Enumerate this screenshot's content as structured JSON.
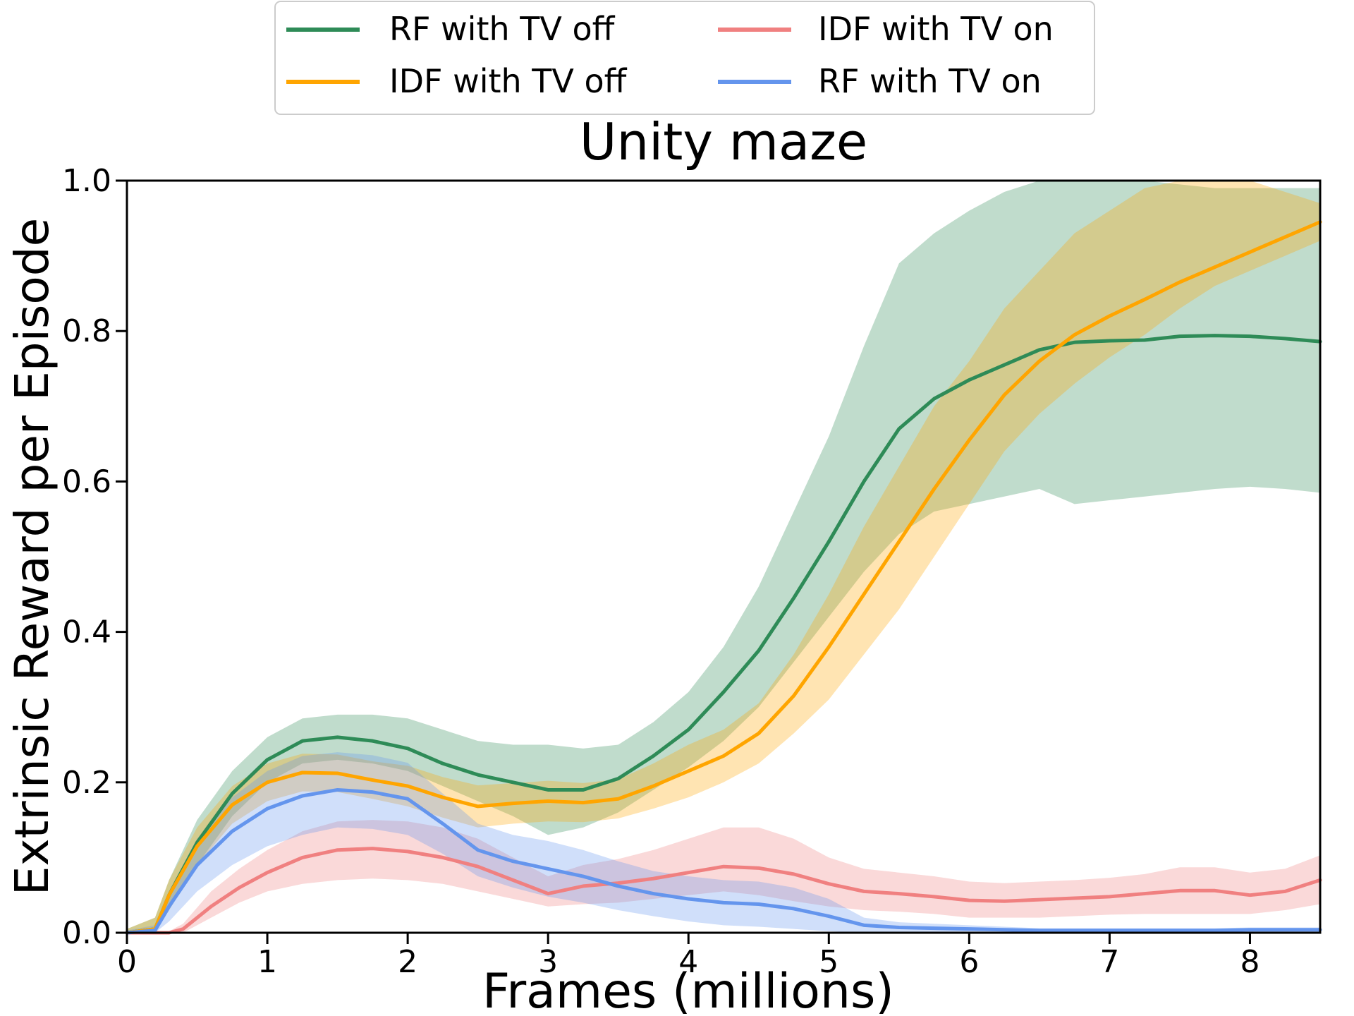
{
  "chart_data": {
    "type": "line",
    "title": "Unity maze",
    "xlabel": "Frames (millions)",
    "ylabel": "Extrinsic Reward per Episode",
    "xlim": [
      0,
      8.5
    ],
    "ylim": [
      0,
      1.0
    ],
    "xticks": [
      "0",
      "1",
      "2",
      "3",
      "4",
      "5",
      "6",
      "7",
      "8"
    ],
    "yticks": [
      "0.0",
      "0.2",
      "0.4",
      "0.6",
      "0.8",
      "1.0"
    ],
    "legend_position": "top-center-outside",
    "grid": false,
    "series": [
      {
        "name": "RF with TV off",
        "color": "#2e8b57",
        "x": [
          0,
          0.2,
          0.3,
          0.5,
          0.75,
          1.0,
          1.25,
          1.5,
          1.75,
          2.0,
          2.25,
          2.5,
          2.75,
          3.0,
          3.25,
          3.5,
          3.75,
          4.0,
          4.25,
          4.5,
          4.75,
          5.0,
          5.25,
          5.5,
          5.75,
          6.0,
          6.25,
          6.5,
          6.75,
          7.0,
          7.25,
          7.5,
          7.75,
          8.0,
          8.25,
          8.5
        ],
        "y": [
          0,
          0.005,
          0.05,
          0.12,
          0.185,
          0.23,
          0.255,
          0.26,
          0.255,
          0.245,
          0.225,
          0.21,
          0.2,
          0.19,
          0.19,
          0.205,
          0.235,
          0.27,
          0.32,
          0.375,
          0.445,
          0.52,
          0.6,
          0.67,
          0.71,
          0.735,
          0.755,
          0.775,
          0.785,
          0.787,
          0.788,
          0.793,
          0.794,
          0.793,
          0.79,
          0.786
        ],
        "lower": [
          0,
          0,
          0.03,
          0.09,
          0.155,
          0.2,
          0.225,
          0.23,
          0.225,
          0.215,
          0.195,
          0.175,
          0.155,
          0.13,
          0.14,
          0.16,
          0.19,
          0.22,
          0.255,
          0.3,
          0.36,
          0.42,
          0.48,
          0.53,
          0.56,
          0.57,
          0.58,
          0.59,
          0.57,
          0.575,
          0.58,
          0.585,
          0.59,
          0.593,
          0.59,
          0.585
        ],
        "upper": [
          0.005,
          0.02,
          0.07,
          0.15,
          0.215,
          0.26,
          0.285,
          0.29,
          0.29,
          0.285,
          0.27,
          0.255,
          0.25,
          0.25,
          0.245,
          0.25,
          0.28,
          0.32,
          0.38,
          0.46,
          0.56,
          0.66,
          0.78,
          0.89,
          0.93,
          0.96,
          0.985,
          1.0,
          1.0,
          1.0,
          1.0,
          0.995,
          0.99,
          0.99,
          0.99,
          0.99
        ]
      },
      {
        "name": "IDF with TV off",
        "color": "#ffa500",
        "x": [
          0,
          0.2,
          0.3,
          0.5,
          0.75,
          1.0,
          1.25,
          1.5,
          1.75,
          2.0,
          2.25,
          2.5,
          2.75,
          3.0,
          3.25,
          3.5,
          3.75,
          4.0,
          4.25,
          4.5,
          4.75,
          5.0,
          5.25,
          5.5,
          5.75,
          6.0,
          6.25,
          6.5,
          6.75,
          7.0,
          7.25,
          7.5,
          7.75,
          8.0,
          8.25,
          8.5
        ],
        "y": [
          0,
          0.005,
          0.05,
          0.115,
          0.17,
          0.2,
          0.213,
          0.212,
          0.203,
          0.195,
          0.18,
          0.168,
          0.172,
          0.175,
          0.173,
          0.178,
          0.195,
          0.215,
          0.235,
          0.265,
          0.315,
          0.38,
          0.45,
          0.52,
          0.59,
          0.655,
          0.715,
          0.76,
          0.795,
          0.82,
          0.842,
          0.865,
          0.885,
          0.905,
          0.925,
          0.945
        ],
        "lower": [
          0,
          0,
          0.03,
          0.09,
          0.145,
          0.175,
          0.188,
          0.187,
          0.178,
          0.168,
          0.153,
          0.14,
          0.145,
          0.148,
          0.147,
          0.152,
          0.165,
          0.18,
          0.2,
          0.225,
          0.265,
          0.31,
          0.37,
          0.43,
          0.5,
          0.57,
          0.64,
          0.69,
          0.73,
          0.765,
          0.795,
          0.83,
          0.86,
          0.88,
          0.9,
          0.92
        ],
        "upper": [
          0.005,
          0.02,
          0.07,
          0.14,
          0.195,
          0.225,
          0.238,
          0.237,
          0.228,
          0.222,
          0.207,
          0.196,
          0.199,
          0.202,
          0.199,
          0.204,
          0.225,
          0.25,
          0.27,
          0.305,
          0.37,
          0.45,
          0.54,
          0.62,
          0.7,
          0.76,
          0.83,
          0.88,
          0.93,
          0.96,
          0.99,
          1.0,
          1.0,
          1.0,
          0.985,
          0.97
        ]
      },
      {
        "name": "IDF with TV on",
        "color": "#f08080",
        "x": [
          0,
          0.3,
          0.4,
          0.6,
          0.8,
          1.0,
          1.25,
          1.5,
          1.75,
          2.0,
          2.25,
          2.5,
          2.75,
          3.0,
          3.25,
          3.5,
          3.75,
          4.0,
          4.25,
          4.5,
          4.75,
          5.0,
          5.25,
          5.5,
          5.75,
          6.0,
          6.25,
          6.5,
          6.75,
          7.0,
          7.25,
          7.5,
          7.75,
          8.0,
          8.25,
          8.5
        ],
        "y": [
          0,
          0,
          0.005,
          0.035,
          0.06,
          0.08,
          0.1,
          0.11,
          0.112,
          0.108,
          0.1,
          0.088,
          0.07,
          0.052,
          0.062,
          0.066,
          0.072,
          0.08,
          0.088,
          0.086,
          0.078,
          0.065,
          0.055,
          0.052,
          0.048,
          0.043,
          0.042,
          0.044,
          0.046,
          0.048,
          0.052,
          0.056,
          0.056,
          0.05,
          0.055,
          0.07
        ],
        "lower": [
          0,
          0,
          0,
          0.02,
          0.04,
          0.055,
          0.065,
          0.07,
          0.072,
          0.07,
          0.065,
          0.055,
          0.045,
          0.035,
          0.038,
          0.04,
          0.045,
          0.05,
          0.055,
          0.05,
          0.042,
          0.035,
          0.03,
          0.028,
          0.025,
          0.02,
          0.02,
          0.02,
          0.022,
          0.024,
          0.025,
          0.025,
          0.025,
          0.025,
          0.03,
          0.038
        ],
        "upper": [
          0.002,
          0.002,
          0.012,
          0.055,
          0.085,
          0.11,
          0.135,
          0.148,
          0.15,
          0.148,
          0.14,
          0.125,
          0.1,
          0.075,
          0.09,
          0.098,
          0.11,
          0.125,
          0.14,
          0.14,
          0.125,
          0.1,
          0.085,
          0.08,
          0.075,
          0.068,
          0.066,
          0.068,
          0.07,
          0.073,
          0.078,
          0.087,
          0.087,
          0.08,
          0.085,
          0.103
        ]
      },
      {
        "name": "RF with TV on",
        "color": "#6495ed",
        "x": [
          0,
          0.2,
          0.3,
          0.5,
          0.75,
          1.0,
          1.25,
          1.5,
          1.75,
          2.0,
          2.25,
          2.5,
          2.75,
          3.0,
          3.25,
          3.5,
          3.75,
          4.0,
          4.25,
          4.5,
          4.75,
          5.0,
          5.25,
          5.5,
          5.75,
          6.0,
          6.25,
          6.5,
          6.75,
          7.0,
          7.25,
          7.5,
          7.75,
          8.0,
          8.25,
          8.5
        ],
        "y": [
          0,
          0.003,
          0.035,
          0.09,
          0.135,
          0.165,
          0.182,
          0.19,
          0.187,
          0.178,
          0.145,
          0.11,
          0.095,
          0.085,
          0.075,
          0.062,
          0.052,
          0.045,
          0.04,
          0.038,
          0.032,
          0.022,
          0.01,
          0.007,
          0.006,
          0.005,
          0.004,
          0.003,
          0.003,
          0.003,
          0.003,
          0.003,
          0.003,
          0.004,
          0.004,
          0.004
        ],
        "lower": [
          0,
          0,
          0.015,
          0.055,
          0.09,
          0.115,
          0.13,
          0.14,
          0.138,
          0.13,
          0.105,
          0.075,
          0.06,
          0.048,
          0.04,
          0.03,
          0.022,
          0.015,
          0.01,
          0.008,
          0.005,
          0.002,
          0,
          0,
          0,
          0,
          0,
          0,
          0,
          0,
          0,
          0,
          0,
          0,
          0,
          0
        ],
        "upper": [
          0.003,
          0.01,
          0.055,
          0.125,
          0.18,
          0.215,
          0.235,
          0.24,
          0.236,
          0.226,
          0.185,
          0.145,
          0.13,
          0.122,
          0.11,
          0.095,
          0.082,
          0.075,
          0.07,
          0.068,
          0.06,
          0.045,
          0.02,
          0.014,
          0.012,
          0.01,
          0.008,
          0.006,
          0.006,
          0.006,
          0.006,
          0.006,
          0.006,
          0.007,
          0.007,
          0.007
        ]
      }
    ],
    "legend_order": [
      "RF with TV off",
      "IDF with TV off",
      "IDF with TV on",
      "RF with TV on"
    ]
  }
}
